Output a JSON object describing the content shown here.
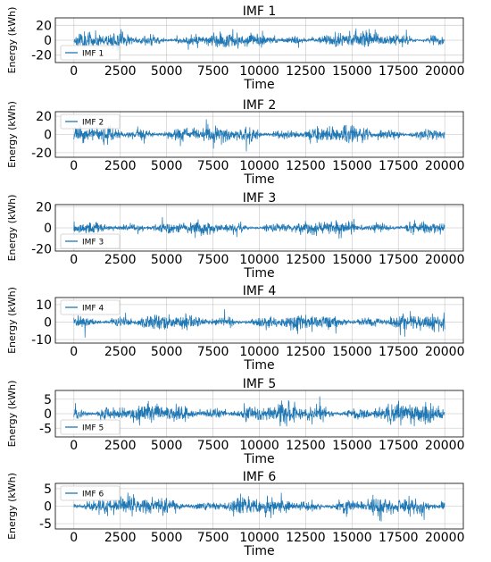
{
  "chart_data": [
    {
      "type": "line",
      "title": "IMF 1",
      "xlabel": "Time",
      "ylabel": "Energy (kWh)",
      "xlim": [
        -1000,
        21000
      ],
      "ylim": [
        -30,
        30
      ],
      "xticks": [
        0,
        2500,
        5000,
        7500,
        10000,
        12500,
        15000,
        17500,
        20000
      ],
      "yticks": [
        -20,
        0,
        20
      ],
      "grid": true,
      "legend_position": "lower-left",
      "series": [
        {
          "name": "IMF 1",
          "color": "#1f77b4",
          "x_range": [
            0,
            20000
          ],
          "typical_amplitude": 8,
          "peak_amplitude": 27
        }
      ]
    },
    {
      "type": "line",
      "title": "IMF 2",
      "xlabel": "Time",
      "ylabel": "Energy (kWh)",
      "xlim": [
        -1000,
        21000
      ],
      "ylim": [
        -25,
        25
      ],
      "xticks": [
        0,
        2500,
        5000,
        7500,
        10000,
        12500,
        15000,
        17500,
        20000
      ],
      "yticks": [
        -20,
        0,
        20
      ],
      "grid": true,
      "legend_position": "upper-left",
      "series": [
        {
          "name": "IMF 2",
          "color": "#1f77b4",
          "x_range": [
            0,
            20000
          ],
          "typical_amplitude": 7,
          "peak_amplitude": 23
        }
      ]
    },
    {
      "type": "line",
      "title": "IMF 3",
      "xlabel": "Time",
      "ylabel": "Energy (kWh)",
      "xlim": [
        -1000,
        21000
      ],
      "ylim": [
        -22,
        22
      ],
      "xticks": [
        0,
        2500,
        5000,
        7500,
        10000,
        12500,
        15000,
        17500,
        20000
      ],
      "yticks": [
        -20,
        0,
        20
      ],
      "grid": true,
      "legend_position": "lower-left",
      "series": [
        {
          "name": "IMF 3",
          "color": "#1f77b4",
          "x_range": [
            0,
            20000
          ],
          "typical_amplitude": 5,
          "peak_amplitude": 19
        }
      ]
    },
    {
      "type": "line",
      "title": "IMF 4",
      "xlabel": "Time",
      "ylabel": "Energy (kWh)",
      "xlim": [
        -1000,
        21000
      ],
      "ylim": [
        -12,
        14
      ],
      "xticks": [
        0,
        2500,
        5000,
        7500,
        10000,
        12500,
        15000,
        17500,
        20000
      ],
      "yticks": [
        -10,
        0,
        10
      ],
      "grid": true,
      "legend_position": "upper-left",
      "series": [
        {
          "name": "IMF 4",
          "color": "#1f77b4",
          "x_range": [
            0,
            20000
          ],
          "typical_amplitude": 3.5,
          "peak_amplitude": 12
        }
      ]
    },
    {
      "type": "line",
      "title": "IMF 5",
      "xlabel": "Time",
      "ylabel": "Energy (kWh)",
      "xlim": [
        -1000,
        21000
      ],
      "ylim": [
        -8,
        8
      ],
      "xticks": [
        0,
        2500,
        5000,
        7500,
        10000,
        12500,
        15000,
        17500,
        20000
      ],
      "yticks": [
        -5,
        0,
        5
      ],
      "grid": true,
      "legend_position": "lower-left",
      "series": [
        {
          "name": "IMF 5",
          "color": "#1f77b4",
          "x_range": [
            0,
            20000
          ],
          "typical_amplitude": 2.5,
          "peak_amplitude": 7
        }
      ]
    },
    {
      "type": "line",
      "title": "IMF 6",
      "xlabel": "Time",
      "ylabel": "Energy (kWh)",
      "xlim": [
        -1000,
        21000
      ],
      "ylim": [
        -6.5,
        6.5
      ],
      "xticks": [
        0,
        2500,
        5000,
        7500,
        10000,
        12500,
        15000,
        17500,
        20000
      ],
      "yticks": [
        -5,
        0,
        5
      ],
      "grid": true,
      "legend_position": "upper-left",
      "series": [
        {
          "name": "IMF 6",
          "color": "#1f77b4",
          "x_range": [
            0,
            20000
          ],
          "typical_amplitude": 2,
          "peak_amplitude": 5.5
        }
      ]
    }
  ]
}
